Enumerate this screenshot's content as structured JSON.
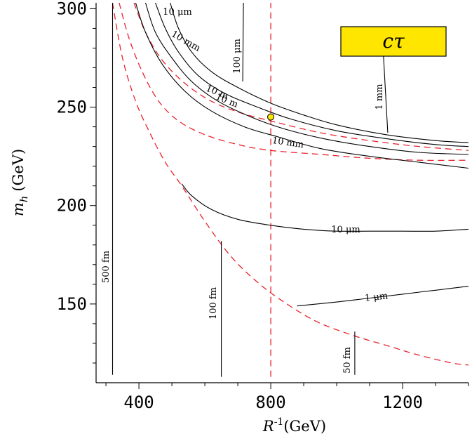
{
  "chart_data": {
    "type": "line",
    "title": "",
    "xlabel": {
      "main": "R",
      "sup": "-1",
      "unit": "(GeV)"
    },
    "ylabel": {
      "main": "m",
      "sub": "h",
      "unit": "(GeV)"
    },
    "xlim": [
      270,
      1400
    ],
    "ylim": [
      110,
      303
    ],
    "xticks": [
      400,
      800,
      1200
    ],
    "yticks": [
      150,
      200,
      250,
      300
    ],
    "legend_box": {
      "label": "cτ",
      "fill": "#ffe600",
      "position": "top-right"
    },
    "colors": {
      "contour": "#000000",
      "boundary": "#e8232d",
      "marker": "#ffe600"
    },
    "contours": [
      {
        "label": "10 μm",
        "points": [
          [
            495,
            303
          ],
          [
            520,
            290
          ],
          [
            560,
            278
          ],
          [
            620,
            268
          ],
          [
            700,
            260
          ],
          [
            800,
            252
          ],
          [
            900,
            246
          ],
          [
            1000,
            241
          ],
          [
            1150,
            236
          ],
          [
            1300,
            233
          ],
          [
            1400,
            232
          ]
        ]
      },
      {
        "label": "10 mm",
        "points": [
          [
            450,
            303
          ],
          [
            480,
            290
          ],
          [
            520,
            278
          ],
          [
            580,
            266
          ],
          [
            660,
            257
          ],
          [
            760,
            250
          ],
          [
            860,
            244
          ],
          [
            1000,
            238
          ],
          [
            1150,
            234
          ],
          [
            1300,
            231
          ],
          [
            1400,
            230
          ]
        ]
      },
      {
        "label": "10 m",
        "points": [
          [
            420,
            303
          ],
          [
            450,
            288
          ],
          [
            500,
            275
          ],
          [
            560,
            263
          ],
          [
            640,
            253
          ],
          [
            740,
            245
          ],
          [
            840,
            239
          ],
          [
            960,
            234
          ],
          [
            1100,
            230
          ],
          [
            1250,
            227
          ],
          [
            1400,
            226
          ]
        ]
      },
      {
        "label": "10 mm",
        "points": [
          [
            390,
            303
          ],
          [
            420,
            288
          ],
          [
            470,
            272
          ],
          [
            540,
            258
          ],
          [
            620,
            248
          ],
          [
            720,
            240
          ],
          [
            820,
            235
          ],
          [
            950,
            229
          ],
          [
            1100,
            225
          ],
          [
            1250,
            222
          ],
          [
            1400,
            219
          ]
        ]
      },
      {
        "label": "10 μm",
        "points": [
          [
            530,
            211
          ],
          [
            560,
            205
          ],
          [
            620,
            198
          ],
          [
            700,
            193
          ],
          [
            800,
            190
          ],
          [
            900,
            188
          ],
          [
            1000,
            187
          ],
          [
            1100,
            187
          ],
          [
            1200,
            187
          ],
          [
            1300,
            187
          ],
          [
            1400,
            188
          ]
        ]
      },
      {
        "label": "1 μm",
        "points": [
          [
            880,
            149
          ],
          [
            1000,
            151
          ],
          [
            1100,
            153
          ],
          [
            1200,
            155
          ],
          [
            1300,
            157
          ],
          [
            1400,
            159
          ]
        ]
      },
      {
        "label": "500 fm",
        "points": [
          [
            320,
            114
          ],
          [
            320,
            303
          ]
        ]
      },
      {
        "label": "100 fm",
        "points": [
          [
            650,
            113
          ],
          [
            650,
            182
          ]
        ]
      },
      {
        "label": "50 fm",
        "points": [
          [
            1055,
            114
          ],
          [
            1055,
            136
          ]
        ]
      },
      {
        "label": "100 μm",
        "points": [
          [
            715,
            263
          ],
          [
            717,
            303
          ]
        ]
      },
      {
        "label": "1 mm",
        "points": [
          [
            1138,
            288
          ],
          [
            1155,
            237
          ]
        ]
      }
    ],
    "boundaries": [
      {
        "points": [
          [
            340,
            303
          ],
          [
            370,
            285
          ],
          [
            410,
            268
          ],
          [
            460,
            253
          ],
          [
            520,
            243
          ],
          [
            600,
            236
          ],
          [
            700,
            231
          ],
          [
            800,
            228
          ],
          [
            950,
            226
          ],
          [
            1100,
            224
          ],
          [
            1250,
            223
          ],
          [
            1400,
            223
          ]
        ]
      },
      {
        "points": [
          [
            385,
            303
          ],
          [
            420,
            288
          ],
          [
            470,
            274
          ],
          [
            540,
            262
          ],
          [
            620,
            253
          ],
          [
            710,
            247
          ],
          [
            800,
            243
          ],
          [
            950,
            237
          ],
          [
            1100,
            233
          ],
          [
            1250,
            230
          ],
          [
            1400,
            228
          ]
        ]
      },
      {
        "points": [
          [
            320,
            303
          ],
          [
            350,
            275
          ],
          [
            390,
            253
          ],
          [
            430,
            238
          ],
          [
            480,
            222
          ],
          [
            530,
            210
          ],
          [
            600,
            192
          ],
          [
            680,
            174
          ],
          [
            760,
            161
          ],
          [
            840,
            151
          ],
          [
            940,
            141
          ],
          [
            1050,
            134
          ],
          [
            1150,
            129
          ],
          [
            1250,
            124
          ],
          [
            1350,
            120
          ],
          [
            1400,
            119
          ]
        ]
      },
      {
        "points": [
          [
            800,
            113
          ],
          [
            800,
            303
          ]
        ]
      }
    ],
    "marker": {
      "x": 800,
      "y": 245
    }
  }
}
